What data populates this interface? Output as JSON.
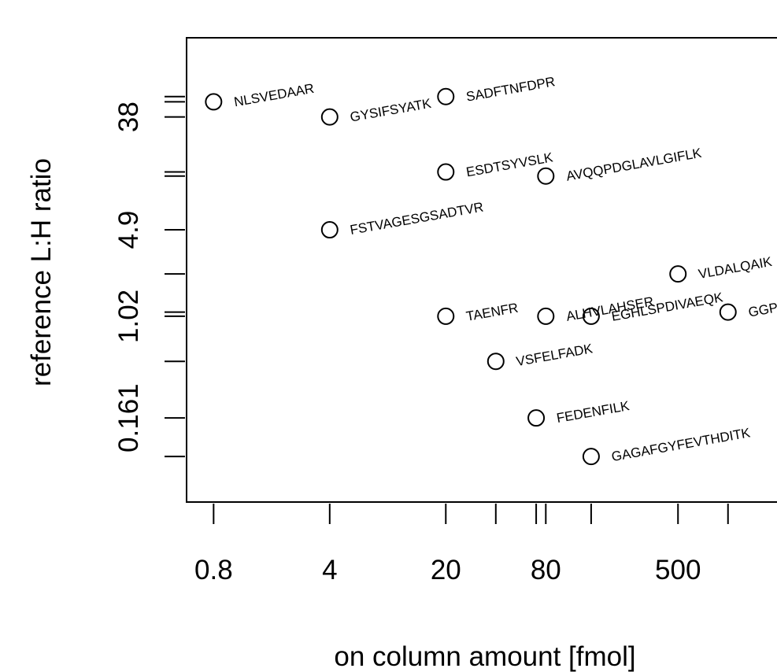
{
  "chart_data": {
    "type": "scatter",
    "xlabel": "on column amount [fmol]",
    "ylabel": "reference L:H ratio",
    "x_scale": "log",
    "y_scale": "log",
    "x_ticks": [
      0.8,
      4,
      20,
      40,
      70,
      80,
      150,
      500,
      1000
    ],
    "x_tick_labels": [
      "0.8",
      "4",
      "20",
      "",
      "",
      "80",
      "",
      "500",
      ""
    ],
    "y_ticks": [
      0.08,
      0.161,
      0.45,
      1.02,
      1.1,
      2.2,
      4.9,
      13,
      14,
      38,
      50,
      55
    ],
    "y_tick_labels": [
      "",
      "0.161",
      "",
      "1.02",
      "",
      "",
      "4.9",
      "",
      "",
      "38",
      "",
      ""
    ],
    "xlim": [
      0.55,
      2200
    ],
    "ylim": [
      0.035,
      160
    ],
    "points": [
      {
        "label": "NLSVEDAAR",
        "x": 0.8,
        "y": 50
      },
      {
        "label": "GYSIFSYATK",
        "x": 4,
        "y": 38
      },
      {
        "label": "SADFTNFDPR",
        "x": 20,
        "y": 55
      },
      {
        "label": "ESDTSYVSLK",
        "x": 20,
        "y": 14
      },
      {
        "label": "AVQQPDGLAVLGIFLK",
        "x": 80,
        "y": 13
      },
      {
        "label": "FSTVAGESGSADTVR",
        "x": 4,
        "y": 4.9
      },
      {
        "label": "VLDALQAIK",
        "x": 500,
        "y": 2.2
      },
      {
        "label": "TAENFR",
        "x": 20,
        "y": 1.02
      },
      {
        "label": "ALHVLAHSER",
        "x": 80,
        "y": 1.02
      },
      {
        "label": "EGHLSPDIVAEQK",
        "x": 150,
        "y": 1.02
      },
      {
        "label": "GGPFSDSYR",
        "x": 1000,
        "y": 1.1
      },
      {
        "label": "VSFELFADK",
        "x": 40,
        "y": 0.45
      },
      {
        "label": "FEDENFILK",
        "x": 70,
        "y": 0.161
      },
      {
        "label": "GAGAFGYFEVTHDITK",
        "x": 150,
        "y": 0.08
      }
    ]
  }
}
